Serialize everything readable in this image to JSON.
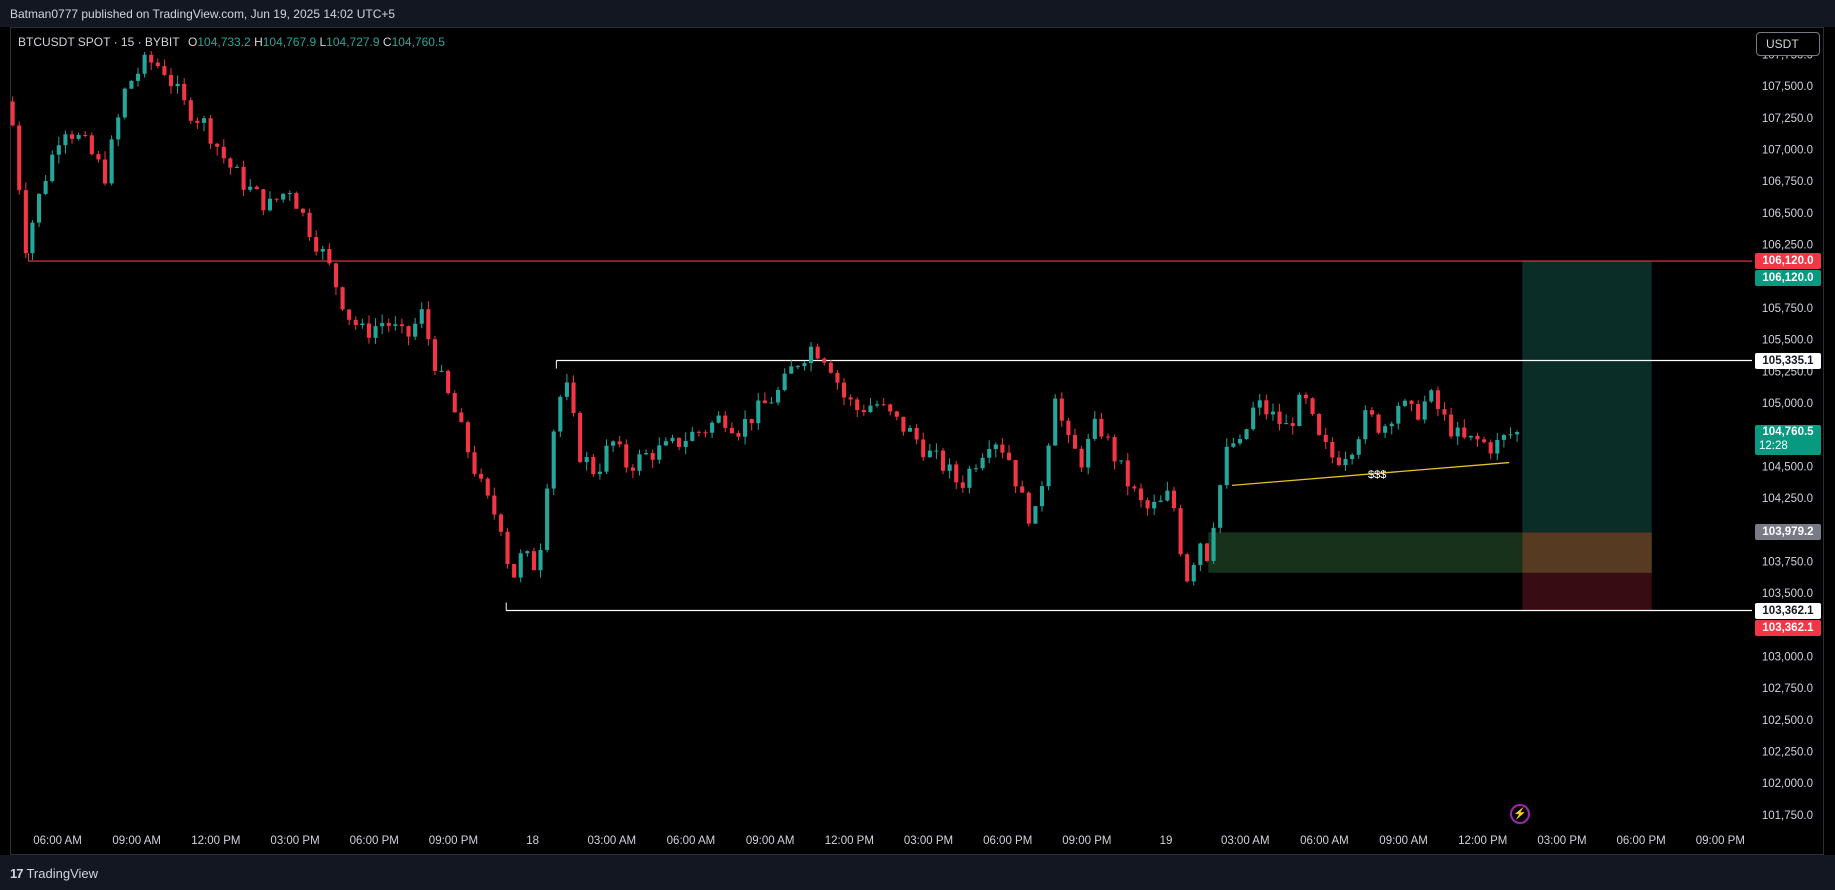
{
  "header": {
    "publisher": "Batman0777 published on TradingView.com, Jun 19, 2025 14:02 UTC+5"
  },
  "symbol_bar": {
    "symbol": "BTCUSDT SPOT · 15 · BYBIT",
    "open_key": "O",
    "open": "104,733.2",
    "high_key": "H",
    "high": "104,767.9",
    "low_key": "L",
    "low": "104,727.9",
    "close_key": "C",
    "close": "104,760.5"
  },
  "currency_button": "USDT",
  "footer": {
    "brand": "TradingView"
  },
  "colors": {
    "up": "#26a69a",
    "down": "#f23645",
    "level": "#ffffff",
    "resistance": "#f23645",
    "trendline": "#e6c229",
    "profit_zone": "#0b2f2a",
    "loss_zone": "#3a0d14",
    "demand_zone": "#1c3a1e"
  },
  "chart_data": {
    "type": "candlestick",
    "symbol": "BTCUSDT",
    "interval": "15",
    "y_axis": {
      "ticks": [
        "101,750.0",
        "102,000.0",
        "102,250.0",
        "102,500.0",
        "102,750.0",
        "103,000.0",
        "103,250.0",
        "103,500.0",
        "103,750.0",
        "104,000.0",
        "104,250.0",
        "104,500.0",
        "104,750.0",
        "105,000.0",
        "105,250.0",
        "105,500.0",
        "105,750.0",
        "106,000.0",
        "106,250.0",
        "106,500.0",
        "106,750.0",
        "107,000.0",
        "107,250.0",
        "107,500.0",
        "107,750.0"
      ],
      "tick_values": [
        101750,
        102000,
        102250,
        102500,
        102750,
        103000,
        103250,
        103500,
        103750,
        104000,
        104250,
        104500,
        104750,
        105000,
        105250,
        105500,
        105750,
        106000,
        106250,
        106500,
        106750,
        107000,
        107250,
        107500,
        107750
      ],
      "range": [
        101630,
        107920
      ]
    },
    "x_axis": {
      "ticks": [
        "06:00 AM",
        "09:00 AM",
        "12:00 PM",
        "03:00 PM",
        "06:00 PM",
        "09:00 PM",
        "18",
        "03:00 AM",
        "06:00 AM",
        "09:00 AM",
        "12:00 PM",
        "03:00 PM",
        "06:00 PM",
        "09:00 PM",
        "19",
        "03:00 AM",
        "06:00 AM",
        "09:00 AM",
        "12:00 PM",
        "03:00 PM",
        "06:00 PM",
        "09:00 PM"
      ],
      "tick_hours": [
        6,
        9,
        12,
        15,
        18,
        21,
        24,
        27,
        30,
        33,
        36,
        39,
        42,
        45,
        48,
        51,
        54,
        57,
        60,
        63,
        66,
        69
      ],
      "range_hours": [
        4.2,
        70.2
      ],
      "origin": "Jun 17 00:00"
    },
    "close_path": [
      [
        4.2,
        107380
      ],
      [
        4.8,
        106250
      ],
      [
        5.4,
        106700
      ],
      [
        6.2,
        107200
      ],
      [
        7.0,
        107050
      ],
      [
        7.8,
        106800
      ],
      [
        8.6,
        107500
      ],
      [
        9.4,
        107700
      ],
      [
        10.0,
        107650
      ],
      [
        10.8,
        107350
      ],
      [
        11.6,
        107200
      ],
      [
        12.4,
        106900
      ],
      [
        13.2,
        106700
      ],
      [
        14.0,
        106550
      ],
      [
        14.8,
        106700
      ],
      [
        15.6,
        106350
      ],
      [
        16.2,
        106120
      ],
      [
        17.0,
        105700
      ],
      [
        17.6,
        105550
      ],
      [
        18.4,
        105650
      ],
      [
        19.2,
        105500
      ],
      [
        19.8,
        105700
      ],
      [
        20.4,
        105250
      ],
      [
        21.0,
        104950
      ],
      [
        21.6,
        104600
      ],
      [
        22.2,
        104250
      ],
      [
        22.8,
        104050
      ],
      [
        23.2,
        103600
      ],
      [
        23.6,
        103800
      ],
      [
        24.2,
        103700
      ],
      [
        24.7,
        104700
      ],
      [
        25.2,
        105200
      ],
      [
        25.8,
        104600
      ],
      [
        26.4,
        104450
      ],
      [
        27.0,
        104700
      ],
      [
        27.6,
        104500
      ],
      [
        28.4,
        104600
      ],
      [
        29.2,
        104650
      ],
      [
        30.0,
        104750
      ],
      [
        30.6,
        104800
      ],
      [
        31.2,
        104900
      ],
      [
        31.8,
        104800
      ],
      [
        32.6,
        104950
      ],
      [
        33.4,
        105100
      ],
      [
        33.9,
        105300
      ],
      [
        34.6,
        105450
      ],
      [
        35.2,
        105350
      ],
      [
        35.8,
        105050
      ],
      [
        36.3,
        104950
      ],
      [
        37.0,
        105000
      ],
      [
        37.8,
        104850
      ],
      [
        38.4,
        104750
      ],
      [
        39.0,
        104600
      ],
      [
        39.6,
        104500
      ],
      [
        40.2,
        104350
      ],
      [
        40.8,
        104550
      ],
      [
        41.4,
        104750
      ],
      [
        42.0,
        104600
      ],
      [
        42.6,
        104200
      ],
      [
        43.0,
        104050
      ],
      [
        43.4,
        104500
      ],
      [
        43.8,
        105100
      ],
      [
        44.2,
        104700
      ],
      [
        44.8,
        104550
      ],
      [
        45.4,
        104850
      ],
      [
        46.0,
        104600
      ],
      [
        46.6,
        104350
      ],
      [
        47.2,
        104150
      ],
      [
        47.8,
        104200
      ],
      [
        48.2,
        104300
      ],
      [
        48.6,
        103800
      ],
      [
        48.9,
        103550
      ],
      [
        49.2,
        104000
      ],
      [
        49.5,
        103750
      ],
      [
        50.0,
        104300
      ],
      [
        50.4,
        104700
      ],
      [
        50.8,
        104650
      ],
      [
        51.4,
        105000
      ],
      [
        52.0,
        104900
      ],
      [
        52.6,
        104800
      ],
      [
        53.2,
        105050
      ],
      [
        53.8,
        104700
      ],
      [
        54.4,
        104550
      ],
      [
        55.0,
        104650
      ],
      [
        55.6,
        104900
      ],
      [
        56.2,
        104800
      ],
      [
        56.8,
        105000
      ],
      [
        57.4,
        104900
      ],
      [
        58.0,
        105050
      ],
      [
        58.6,
        104850
      ],
      [
        59.2,
        104700
      ],
      [
        59.8,
        104700
      ],
      [
        60.4,
        104650
      ],
      [
        61.0,
        104750
      ],
      [
        61.3,
        104760
      ]
    ],
    "levels": [
      {
        "name": "resistance",
        "value": 106120.0,
        "label": "106,120.0",
        "from_hours": 4.9
      },
      {
        "name": "range-high",
        "value": 105335.1,
        "label": "105,335.1",
        "from_hours": 24.9
      },
      {
        "name": "range-low",
        "value": 103362.1,
        "label": "103,362.1",
        "from_hours": 23.0
      }
    ],
    "price_labels": [
      {
        "text": "106,120.0",
        "value": 106120.0,
        "style": "red"
      },
      {
        "text": "106,120.0",
        "value": 106120.0,
        "style": "green",
        "offset": 1
      },
      {
        "text": "105,335.1",
        "value": 105335.1,
        "style": "white"
      },
      {
        "text": "104,760.5",
        "value": 104760.5,
        "style": "green",
        "sub": "12:28"
      },
      {
        "text": "103,979.2",
        "value": 103979.2,
        "style": "gray"
      },
      {
        "text": "103,362.1",
        "value": 103362.1,
        "style": "white"
      },
      {
        "text": "103,362.1",
        "value": 103362.1,
        "style": "red",
        "offset": 1
      }
    ],
    "zones": [
      {
        "name": "demand-zone",
        "x": [
          49.6,
          66.4
        ],
        "y": [
          103660,
          103979.2
        ]
      },
      {
        "name": "profit-zone",
        "x": [
          61.5,
          66.4
        ],
        "y": [
          103979.2,
          106120
        ]
      },
      {
        "name": "loss-zone",
        "x": [
          61.5,
          66.4
        ],
        "y": [
          103362.1,
          103979.2
        ]
      }
    ],
    "trendline": {
      "from": [
        50.5,
        104350
      ],
      "to": [
        61.0,
        104530
      ],
      "label": "$$$",
      "label_at": [
        56.0,
        104440
      ]
    }
  }
}
